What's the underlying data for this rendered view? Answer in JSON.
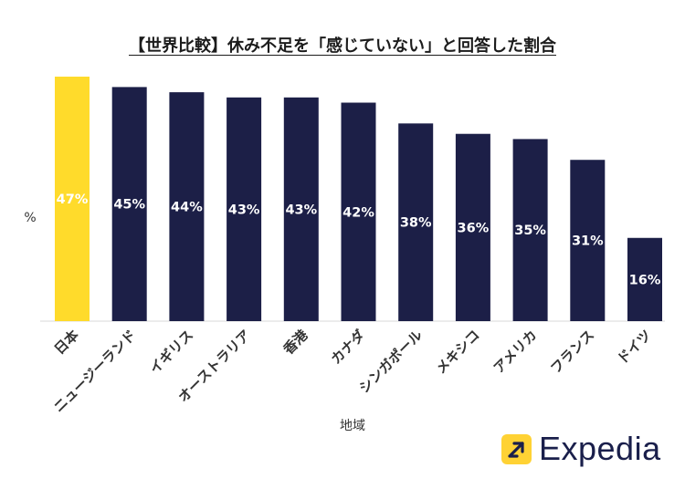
{
  "chart_data": {
    "type": "bar",
    "title": "【世界比較】休み不足を「感じていない」と回答した割合",
    "ylabel": "%",
    "xlabel": "地域",
    "categories": [
      "日本",
      "ニュージーランド",
      "イギリス",
      "オーストラリア",
      "香港",
      "カナダ",
      "シンガポール",
      "メキシコ",
      "アメリカ",
      "フランス",
      "ドイツ"
    ],
    "values": [
      47,
      45,
      44,
      43,
      43,
      42,
      38,
      36,
      35,
      31,
      16
    ],
    "data_labels": [
      "47%",
      "45%",
      "44%",
      "43%",
      "43%",
      "42%",
      "38%",
      "36%",
      "35%",
      "31%",
      "16%"
    ],
    "ylim": [
      0,
      47
    ],
    "grid": false,
    "highlight_index": 0,
    "colors": {
      "default_bar": "#1C1F47",
      "highlight_bar": "#FFDB2B",
      "label": "#FFFFFF",
      "axis": "#D9D9D9",
      "text": "#333333"
    }
  },
  "brand": {
    "name": "Expedia",
    "icon": "arrow-up-right-icon",
    "badge_color": "#FFD234",
    "text_color": "#1A1F4B"
  }
}
